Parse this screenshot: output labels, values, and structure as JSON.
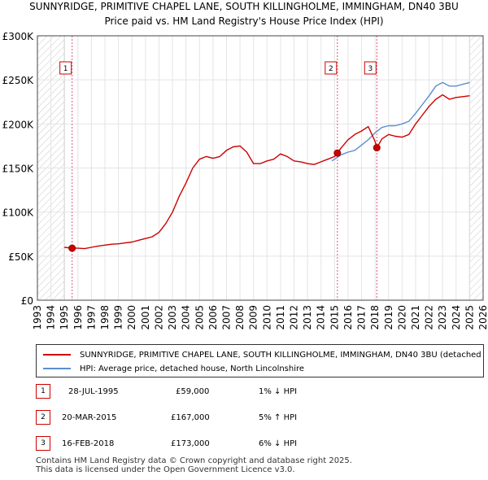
{
  "chart_data": {
    "type": "line",
    "title": "SUNNYRIDGE, PRIMITIVE CHAPEL LANE, SOUTH KILLINGHOLME, IMMINGHAM, DN40 3BU",
    "subtitle": "Price paid vs. HM Land Registry's House Price Index (HPI)",
    "xlabel": "",
    "ylabel": "",
    "xlim": [
      1993,
      2026
    ],
    "ylim": [
      0,
      300000
    ],
    "x_ticks": [
      "1993",
      "1994",
      "1995",
      "1996",
      "1997",
      "1998",
      "1999",
      "2000",
      "2001",
      "2002",
      "2003",
      "2004",
      "2005",
      "2006",
      "2007",
      "2008",
      "2009",
      "2010",
      "2011",
      "2012",
      "2013",
      "2014",
      "2015",
      "2016",
      "2017",
      "2018",
      "2019",
      "2020",
      "2021",
      "2022",
      "2023",
      "2024",
      "2025",
      "2026"
    ],
    "y_ticks": [
      {
        "value": 0,
        "label": "£0"
      },
      {
        "value": 50000,
        "label": "£50K"
      },
      {
        "value": 100000,
        "label": "£100K"
      },
      {
        "value": 150000,
        "label": "£150K"
      },
      {
        "value": 200000,
        "label": "£200K"
      },
      {
        "value": 250000,
        "label": "£250K"
      },
      {
        "value": 300000,
        "label": "£300K"
      }
    ],
    "hatched_ranges": [
      [
        1993,
        1995.0
      ],
      [
        2025.0,
        2026
      ]
    ],
    "series": [
      {
        "name": "SUNNYRIDGE, PRIMITIVE CHAPEL LANE, SOUTH KILLINGHOLME, IMMINGHAM, DN40 3BU (detached house)",
        "color": "#cc0000",
        "points": [
          [
            1995.0,
            60000
          ],
          [
            1995.57,
            59000
          ],
          [
            1996.0,
            59000
          ],
          [
            1996.5,
            58500
          ],
          [
            1997.0,
            60000
          ],
          [
            1997.5,
            61500
          ],
          [
            1998.0,
            62500
          ],
          [
            1998.5,
            63500
          ],
          [
            1999.0,
            64000
          ],
          [
            1999.5,
            65000
          ],
          [
            2000.0,
            66000
          ],
          [
            2000.5,
            68000
          ],
          [
            2001.0,
            70000
          ],
          [
            2001.5,
            72000
          ],
          [
            2002.0,
            77000
          ],
          [
            2002.5,
            87000
          ],
          [
            2003.0,
            100000
          ],
          [
            2003.5,
            118000
          ],
          [
            2004.0,
            133000
          ],
          [
            2004.5,
            150000
          ],
          [
            2005.0,
            160000
          ],
          [
            2005.5,
            163000
          ],
          [
            2006.0,
            161000
          ],
          [
            2006.5,
            163000
          ],
          [
            2007.0,
            170000
          ],
          [
            2007.5,
            174000
          ],
          [
            2008.0,
            175000
          ],
          [
            2008.5,
            168000
          ],
          [
            2009.0,
            155000
          ],
          [
            2009.5,
            155000
          ],
          [
            2010.0,
            158000
          ],
          [
            2010.5,
            160000
          ],
          [
            2011.0,
            166000
          ],
          [
            2011.5,
            163000
          ],
          [
            2012.0,
            158000
          ],
          [
            2012.5,
            157000
          ],
          [
            2013.0,
            155000
          ],
          [
            2013.5,
            154000
          ],
          [
            2014.0,
            157000
          ],
          [
            2014.5,
            160000
          ],
          [
            2015.0,
            163000
          ],
          [
            2015.21,
            167000
          ],
          [
            2015.5,
            173000
          ],
          [
            2016.0,
            182000
          ],
          [
            2016.5,
            188000
          ],
          [
            2017.0,
            192000
          ],
          [
            2017.5,
            197000
          ],
          [
            2018.0,
            180000
          ],
          [
            2018.13,
            173000
          ],
          [
            2018.5,
            183000
          ],
          [
            2019.0,
            188000
          ],
          [
            2019.5,
            186000
          ],
          [
            2020.0,
            185000
          ],
          [
            2020.5,
            188000
          ],
          [
            2021.0,
            200000
          ],
          [
            2021.5,
            210000
          ],
          [
            2022.0,
            220000
          ],
          [
            2022.5,
            228000
          ],
          [
            2023.0,
            233000
          ],
          [
            2023.5,
            228000
          ],
          [
            2024.0,
            230000
          ],
          [
            2024.5,
            231000
          ],
          [
            2025.0,
            232000
          ]
        ]
      },
      {
        "name": "HPI: Average price, detached house, North Lincolnshire",
        "color": "#5b8fd0",
        "points": [
          [
            2014.8,
            158000
          ],
          [
            2015.0,
            160000
          ],
          [
            2015.5,
            165000
          ],
          [
            2016.0,
            168000
          ],
          [
            2016.5,
            170000
          ],
          [
            2017.0,
            176000
          ],
          [
            2017.5,
            182000
          ],
          [
            2018.0,
            190000
          ],
          [
            2018.5,
            196000
          ],
          [
            2019.0,
            198000
          ],
          [
            2019.5,
            198000
          ],
          [
            2020.0,
            200000
          ],
          [
            2020.5,
            203000
          ],
          [
            2021.0,
            212000
          ],
          [
            2021.5,
            222000
          ],
          [
            2022.0,
            232000
          ],
          [
            2022.5,
            243000
          ],
          [
            2023.0,
            247000
          ],
          [
            2023.5,
            243000
          ],
          [
            2024.0,
            243000
          ],
          [
            2024.5,
            245000
          ],
          [
            2025.0,
            247000
          ]
        ]
      }
    ],
    "sale_markers": [
      {
        "id": "1",
        "x": 1995.57,
        "y": 59000
      },
      {
        "id": "2",
        "x": 2015.21,
        "y": 167000
      },
      {
        "id": "3",
        "x": 2018.13,
        "y": 173000
      }
    ]
  },
  "legend": {
    "property_label": "SUNNYRIDGE, PRIMITIVE CHAPEL LANE, SOUTH KILLINGHOLME, IMMINGHAM, DN40 3BU (detached house)",
    "hpi_label": "HPI: Average price, detached house, North Lincolnshire",
    "property_color": "#cc0000",
    "hpi_color": "#5b8fd0"
  },
  "sales": [
    {
      "num": "1",
      "date": "28-JUL-1995",
      "price": "£59,000",
      "hpi": "1% ↓ HPI"
    },
    {
      "num": "2",
      "date": "20-MAR-2015",
      "price": "£167,000",
      "hpi": "5% ↑ HPI"
    },
    {
      "num": "3",
      "date": "16-FEB-2018",
      "price": "£173,000",
      "hpi": "6% ↓ HPI"
    }
  ],
  "footer": {
    "line1": "Contains HM Land Registry data © Crown copyright and database right 2025.",
    "line2": "This data is licensed under the Open Government Licence v3.0."
  }
}
